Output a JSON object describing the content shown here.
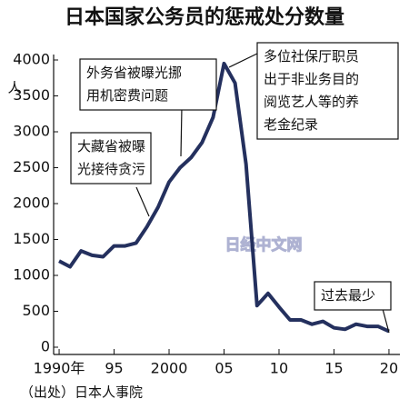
{
  "chart_data": {
    "type": "line",
    "title": "日本国家公务员的惩戒处分数量",
    "y_unit": "人",
    "source": "（出处）日本人事院",
    "watermark": "日经中文网",
    "x": [
      1990,
      1991,
      1992,
      1993,
      1994,
      1995,
      1996,
      1997,
      1998,
      1999,
      2000,
      2001,
      2002,
      2003,
      2004,
      2005,
      2006,
      2007,
      2008,
      2009,
      2010,
      2011,
      2012,
      2013,
      2014,
      2015,
      2016,
      2017,
      2018,
      2019,
      2020
    ],
    "values": [
      1200,
      1120,
      1340,
      1280,
      1260,
      1410,
      1410,
      1450,
      1680,
      1950,
      2300,
      2500,
      2640,
      2850,
      3200,
      3950,
      3680,
      2550,
      580,
      750,
      560,
      380,
      380,
      320,
      360,
      270,
      250,
      320,
      290,
      290,
      220
    ],
    "color": "#24305e",
    "xlim": [
      1989.5,
      2020.5
    ],
    "ylim": [
      0,
      4000
    ],
    "xticks": [
      {
        "value": 1990,
        "label": "1990年"
      },
      {
        "value": 1995,
        "label": "95"
      },
      {
        "value": 2000,
        "label": "2000"
      },
      {
        "value": 2005,
        "label": "05"
      },
      {
        "value": 2010,
        "label": "10"
      },
      {
        "value": 2015,
        "label": "15"
      },
      {
        "value": 2020,
        "label": "20"
      }
    ],
    "yticks": [
      0,
      500,
      1000,
      1500,
      2000,
      2500,
      3000,
      3500,
      4000
    ],
    "annotations": [
      {
        "lines": [
          "大藏省被曝",
          "光接待贪污"
        ]
      },
      {
        "lines": [
          "外务省被曝光挪",
          "用机密费问题"
        ]
      },
      {
        "lines": [
          "多位社保厅职员",
          "出于非业务目的",
          "阅览艺人等的养",
          "老金纪录"
        ]
      },
      {
        "lines": [
          "过去最少"
        ]
      }
    ]
  }
}
